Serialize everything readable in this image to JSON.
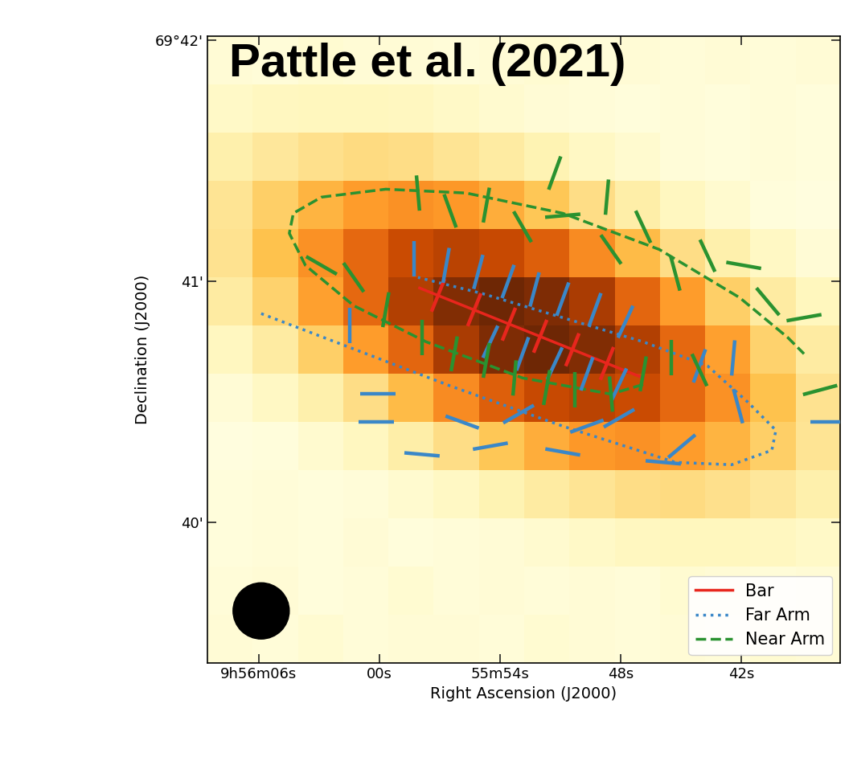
{
  "chart_data": {
    "type": "heatmap",
    "title": "Pattle et al. (2021)",
    "x_label": "Right Ascension (J2000)",
    "y_label": "Declination (J2000)",
    "xlim": [
      68.56,
      37.08
    ],
    "ylim": [
      39.417,
      42.017
    ],
    "xticks": [
      {
        "value": 66,
        "label": "9h56m06s"
      },
      {
        "value": 60,
        "label": "00s"
      },
      {
        "value": 54,
        "label": "55m54s"
      },
      {
        "value": 48,
        "label": "48s"
      },
      {
        "value": 42,
        "label": "42s"
      }
    ],
    "yticks": [
      {
        "value": 42,
        "label": "69°42'"
      },
      {
        "value": 41,
        "label": "41'"
      },
      {
        "value": 40,
        "label": "40'"
      }
    ],
    "legend": "lower right",
    "cells": [
      [
        0.05,
        0.04,
        0.06,
        0.05,
        0.05,
        0.04,
        0.05,
        0.06,
        0.04,
        0.05,
        0.04,
        0.05,
        0.04,
        0.05
      ],
      [
        0.09,
        0.11,
        0.12,
        0.12,
        0.11,
        0.09,
        0.07,
        0.05,
        0.04,
        0.03,
        0.04,
        0.03,
        0.04,
        0.03
      ],
      [
        0.17,
        0.22,
        0.26,
        0.28,
        0.27,
        0.24,
        0.2,
        0.15,
        0.1,
        0.07,
        0.04,
        0.03,
        0.04,
        0.03
      ],
      [
        0.24,
        0.33,
        0.42,
        0.49,
        0.52,
        0.5,
        0.44,
        0.36,
        0.27,
        0.18,
        0.11,
        0.07,
        0.03,
        0.02
      ],
      [
        0.25,
        0.38,
        0.52,
        0.65,
        0.75,
        0.79,
        0.76,
        0.68,
        0.54,
        0.4,
        0.27,
        0.17,
        0.1,
        0.05
      ],
      [
        0.2,
        0.32,
        0.48,
        0.65,
        0.81,
        0.93,
        0.98,
        0.94,
        0.83,
        0.66,
        0.49,
        0.33,
        0.2,
        0.12
      ],
      [
        0.11,
        0.2,
        0.33,
        0.49,
        0.66,
        0.83,
        0.94,
        0.98,
        0.93,
        0.81,
        0.65,
        0.48,
        0.32,
        0.2
      ],
      [
        0.05,
        0.1,
        0.17,
        0.27,
        0.4,
        0.54,
        0.68,
        0.76,
        0.79,
        0.75,
        0.65,
        0.52,
        0.38,
        0.25
      ],
      [
        0.02,
        0.03,
        0.07,
        0.11,
        0.18,
        0.27,
        0.36,
        0.44,
        0.5,
        0.52,
        0.49,
        0.42,
        0.33,
        0.24
      ],
      [
        0.03,
        0.04,
        0.03,
        0.04,
        0.07,
        0.1,
        0.15,
        0.2,
        0.24,
        0.27,
        0.28,
        0.26,
        0.22,
        0.17
      ],
      [
        0.03,
        0.04,
        0.03,
        0.05,
        0.03,
        0.04,
        0.05,
        0.07,
        0.09,
        0.11,
        0.12,
        0.12,
        0.11,
        0.09
      ],
      [
        0.04,
        0.05,
        0.03,
        0.04,
        0.06,
        0.04,
        0.05,
        0.04,
        0.05,
        0.04,
        0.06,
        0.05,
        0.04,
        0.05
      ],
      [
        0.05,
        0.04,
        0.06,
        0.04,
        0.05,
        0.05,
        0.04,
        0.06,
        0.05,
        0.04,
        0.05,
        0.04,
        0.06,
        0.05
      ]
    ],
    "series": [
      {
        "name": "Bar",
        "color": "#e8261d",
        "line_style": "solid",
        "x": [
          58.0,
          46.88
        ],
        "y": [
          40.973,
          40.6
        ],
        "vectors": {
          "x": [
            57.08,
            55.28,
            53.56,
            52.0,
            50.4,
            48.68
          ],
          "y": [
            40.943,
            40.883,
            40.823,
            40.773,
            40.717,
            40.66
          ],
          "angle": [
            -22,
            -22,
            -22,
            -22,
            -22,
            -22
          ]
        }
      },
      {
        "name": "Far Arm",
        "color": "#3a87c8",
        "line_style": "dotted",
        "x": [
          65.88,
          61.68,
          56.48,
          50.88,
          45.28,
          42.48,
          40.48,
          40.28,
          41.68,
          43.68,
          46.88,
          50.88,
          54.88,
          58.08
        ],
        "y": [
          40.867,
          40.733,
          40.567,
          40.4,
          40.25,
          40.24,
          40.3,
          40.383,
          40.5,
          40.65,
          40.75,
          40.85,
          40.95,
          41.017
        ],
        "vectors": {
          "x": [
            58.28,
            56.68,
            55.08,
            53.6,
            52.28,
            50.88,
            49.28,
            47.76,
            54.48,
            52.88,
            51.28,
            49.68,
            48.08,
            44.08,
            42.4,
            42.16,
            61.48,
            60.08,
            57.88,
            55.88,
            54.48,
            53.08,
            50.88,
            49.68,
            48.08,
            45.88,
            44.96,
            37.68,
            60.16
          ],
          "y": [
            41.093,
            41.067,
            41.04,
            41.0,
            40.967,
            40.927,
            40.883,
            40.833,
            40.75,
            40.7,
            40.66,
            40.617,
            40.573,
            40.65,
            40.683,
            40.483,
            40.817,
            40.533,
            40.283,
            40.417,
            40.317,
            40.45,
            40.293,
            40.4,
            40.433,
            40.25,
            40.317,
            40.417,
            40.417
          ],
          "angle": [
            0,
            -10,
            -15,
            -20,
            -15,
            -20,
            -20,
            -25,
            -25,
            -20,
            -25,
            -20,
            -25,
            -20,
            -5,
            15,
            0,
            90,
            85,
            70,
            -80,
            -60,
            80,
            -70,
            -60,
            85,
            -50,
            90,
            90
          ]
        }
      },
      {
        "name": "Near Arm",
        "color": "#2a9230",
        "line_style": "dashed",
        "x": [
          46.88,
          48.48,
          52.88,
          57.68,
          61.28,
          63.68,
          64.48,
          64.28,
          62.88,
          59.68,
          55.68,
          50.88,
          46.08,
          42.08,
          39.68,
          38.88
        ],
        "y": [
          40.573,
          40.533,
          40.6,
          40.75,
          40.9,
          41.067,
          41.2,
          41.283,
          41.35,
          41.383,
          41.367,
          41.283,
          41.133,
          40.933,
          40.767,
          40.7
        ],
        "vectors": {
          "x": [
            58.08,
            56.48,
            54.68,
            52.88,
            50.88,
            48.68,
            46.88,
            48.48,
            45.28,
            43.68,
            41.88,
            40.68,
            38.88,
            38.08,
            62.88,
            61.28,
            59.68,
            57.88,
            56.28,
            54.68,
            53.28,
            51.68,
            50.28,
            48.48,
            46.88,
            45.48,
            44.08,
            51.28
          ],
          "y": [
            41.367,
            41.293,
            41.317,
            41.227,
            41.273,
            41.35,
            41.227,
            41.133,
            41.033,
            41.107,
            41.067,
            40.917,
            40.85,
            40.55,
            41.067,
            41.017,
            40.883,
            40.767,
            40.7,
            40.673,
            40.6,
            40.56,
            40.55,
            40.533,
            40.617,
            40.683,
            40.633,
            41.45
          ],
          "angle": [
            5,
            20,
            -10,
            30,
            -85,
            -5,
            25,
            35,
            15,
            25,
            80,
            40,
            -80,
            -75,
            60,
            35,
            -10,
            0,
            -10,
            -10,
            -5,
            -10,
            0,
            5,
            -10,
            0,
            25,
            -20
          ]
        }
      }
    ]
  }
}
